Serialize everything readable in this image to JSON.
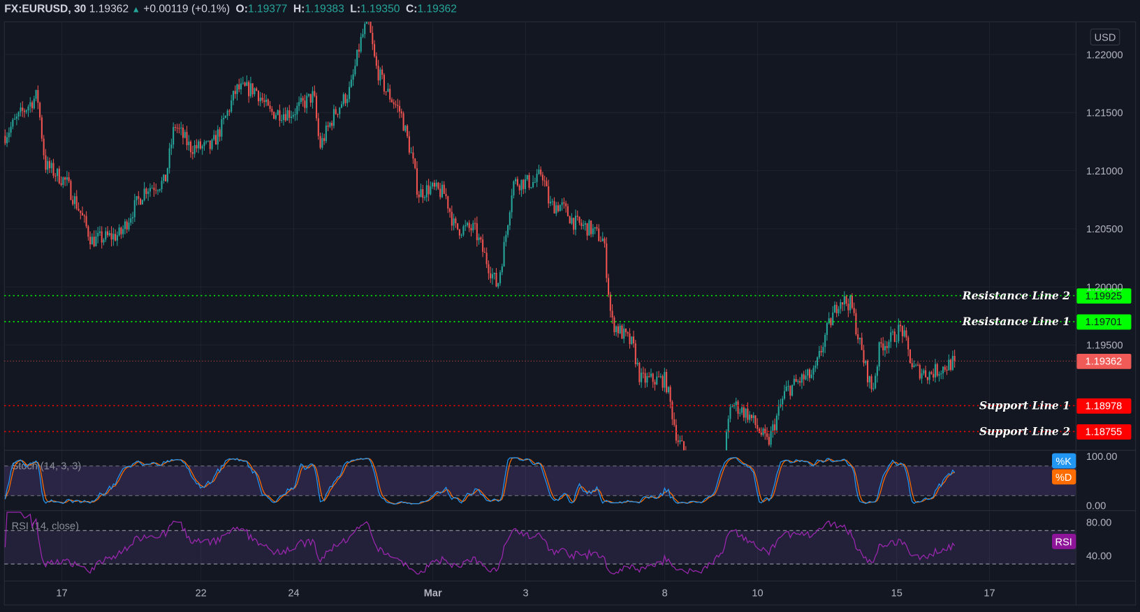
{
  "header": {
    "symbol": "FX:EURUSD, 30",
    "last": "1.19362",
    "change": "+0.00119 (+0.1%)",
    "o_label": "O:",
    "o": "1.19377",
    "h_label": "H:",
    "h": "1.19383",
    "l_label": "L:",
    "l": "1.19350",
    "c_label": "C:",
    "c": "1.19362"
  },
  "currency": "USD",
  "colors": {
    "background": "#131722",
    "up": "#26a69a",
    "down": "#ef5350",
    "resistance": "#00ff00",
    "support": "#ff0000",
    "stoch_k": "#2196f3",
    "stoch_d": "#ff6d00",
    "rsi": "#9c27b0"
  },
  "chart_data": {
    "type": "candlestick",
    "symbol": "FX:EURUSD",
    "interval": "30",
    "price_ticks": [
      "1.22000",
      "1.21500",
      "1.21000",
      "1.20500",
      "1.20000",
      "1.19500"
    ],
    "time_ticks": [
      {
        "label": "17",
        "day": "Feb17"
      },
      {
        "label": "22",
        "day": "Feb22"
      },
      {
        "label": "24",
        "day": "Feb24"
      },
      {
        "label": "Mar",
        "day": "Mar01"
      },
      {
        "label": "3",
        "day": "Mar03"
      },
      {
        "label": "8",
        "day": "Mar08"
      },
      {
        "label": "10",
        "day": "Mar10"
      },
      {
        "label": "15",
        "day": "Mar15"
      },
      {
        "label": "17",
        "day": "Mar17"
      }
    ],
    "approx_close_path": [
      [
        "Feb15 18:00",
        1.213
      ],
      [
        "Feb16 03:00",
        1.215
      ],
      [
        "Feb16 11:00",
        1.2165
      ],
      [
        "Feb16 15:00",
        1.2105
      ],
      [
        "Feb17 02:00",
        1.209
      ],
      [
        "Feb17 09:00",
        1.2065
      ],
      [
        "Feb17 15:00",
        1.204
      ],
      [
        "Feb18 06:00",
        1.2045
      ],
      [
        "Feb18 12:00",
        1.2065
      ],
      [
        "Feb18 19:00",
        1.2085
      ],
      [
        "Feb19 05:00",
        1.209
      ],
      [
        "Feb19 10:00",
        1.214
      ],
      [
        "Feb19 18:00",
        1.212
      ],
      [
        "Feb22 05:00",
        1.212
      ],
      [
        "Feb22 11:00",
        1.214
      ],
      [
        "Feb22 18:00",
        1.217
      ],
      [
        "Feb23 04:00",
        1.217
      ],
      [
        "Feb23 11:00",
        1.215
      ],
      [
        "Feb23 23:00",
        1.215
      ],
      [
        "Feb24 10:00",
        1.2165
      ],
      [
        "Feb24 13:00",
        1.212
      ],
      [
        "Feb24 21:00",
        1.215
      ],
      [
        "Feb25 05:00",
        1.217
      ],
      [
        "Feb25 10:00",
        1.221
      ],
      [
        "Feb25 14:00",
        1.223
      ],
      [
        "Feb25 18:00",
        1.219
      ],
      [
        "Feb25 23:00",
        1.217
      ],
      [
        "Feb26 07:00",
        1.215
      ],
      [
        "Feb26 13:00",
        1.211
      ],
      [
        "Feb26 16:00",
        1.208
      ],
      [
        "Feb26 22:00",
        1.2085
      ],
      [
        "Mar01 06:00",
        1.208
      ],
      [
        "Mar01 11:00",
        1.205
      ],
      [
        "Mar01 21:00",
        1.205
      ],
      [
        "Mar02 04:00",
        1.202
      ],
      [
        "Mar02 09:00",
        1.2
      ],
      [
        "Mar02 13:00",
        1.204
      ],
      [
        "Mar02 17:00",
        1.209
      ],
      [
        "Mar03 05:00",
        1.209
      ],
      [
        "Mar03 08:00",
        1.21
      ],
      [
        "Mar03 12:00",
        1.207
      ],
      [
        "Mar03 18:00",
        1.207
      ],
      [
        "Mar04 01:00",
        1.2055
      ],
      [
        "Mar04 09:00",
        1.205
      ],
      [
        "Mar04 16:00",
        1.204
      ],
      [
        "Mar04 20:00",
        1.197
      ],
      [
        "Mar05 07:00",
        1.195
      ],
      [
        "Mar05 11:00",
        1.192
      ],
      [
        "Mar05 19:00",
        1.192
      ],
      [
        "Mar08 00:00",
        1.192
      ],
      [
        "Mar08 06:00",
        1.187
      ],
      [
        "Mar08 12:00",
        1.185
      ],
      [
        "Mar08 17:00",
        1.183
      ],
      [
        "Mar09 05:00",
        1.184
      ],
      [
        "Mar09 10:00",
        1.19
      ],
      [
        "Mar09 19:00",
        1.189
      ],
      [
        "Mar10 05:00",
        1.1865
      ],
      [
        "Mar10 14:00",
        1.191
      ],
      [
        "Mar10 22:00",
        1.192
      ],
      [
        "Mar11 05:00",
        1.1925
      ],
      [
        "Mar11 11:00",
        1.196
      ],
      [
        "Mar11 18:00",
        1.199
      ],
      [
        "Mar12 00:00",
        1.1985
      ],
      [
        "Mar12 06:00",
        1.194
      ],
      [
        "Mar12 11:00",
        1.191
      ],
      [
        "Mar12 15:00",
        1.195
      ],
      [
        "Mar12 21:00",
        1.1955
      ],
      [
        "Mar15 02:00",
        1.1965
      ],
      [
        "Mar15 08:00",
        1.193
      ],
      [
        "Mar15 16:00",
        1.1925
      ],
      [
        "Mar15 23:00",
        1.193
      ],
      [
        "Mar16 06:00",
        1.19362
      ]
    ],
    "last_price": 1.19362,
    "levels": [
      {
        "name": "Resistance Line 2",
        "value": 1.19925,
        "label": "1.19925",
        "kind": "resistance"
      },
      {
        "name": "Resistance Line 1",
        "value": 1.19701,
        "label": "1.19701",
        "kind": "resistance"
      },
      {
        "name": "Support Line 1",
        "value": 1.18978,
        "label": "1.18978",
        "kind": "support"
      },
      {
        "name": "Support Line 2",
        "value": 1.18755,
        "label": "1.18755",
        "kind": "support"
      }
    ],
    "last_label": "1.19362",
    "stoch": {
      "title": "Stoch (14, 3, 3)",
      "k_label": "%K",
      "d_label": "%D",
      "bands": [
        20,
        80
      ],
      "ticks": [
        "100.00",
        "0.00"
      ],
      "range": [
        0,
        100
      ]
    },
    "rsi": {
      "title": "RSI (14, close)",
      "label": "RSI",
      "bands": [
        30,
        70
      ],
      "ticks": [
        "80.00",
        "40.00"
      ]
    }
  }
}
